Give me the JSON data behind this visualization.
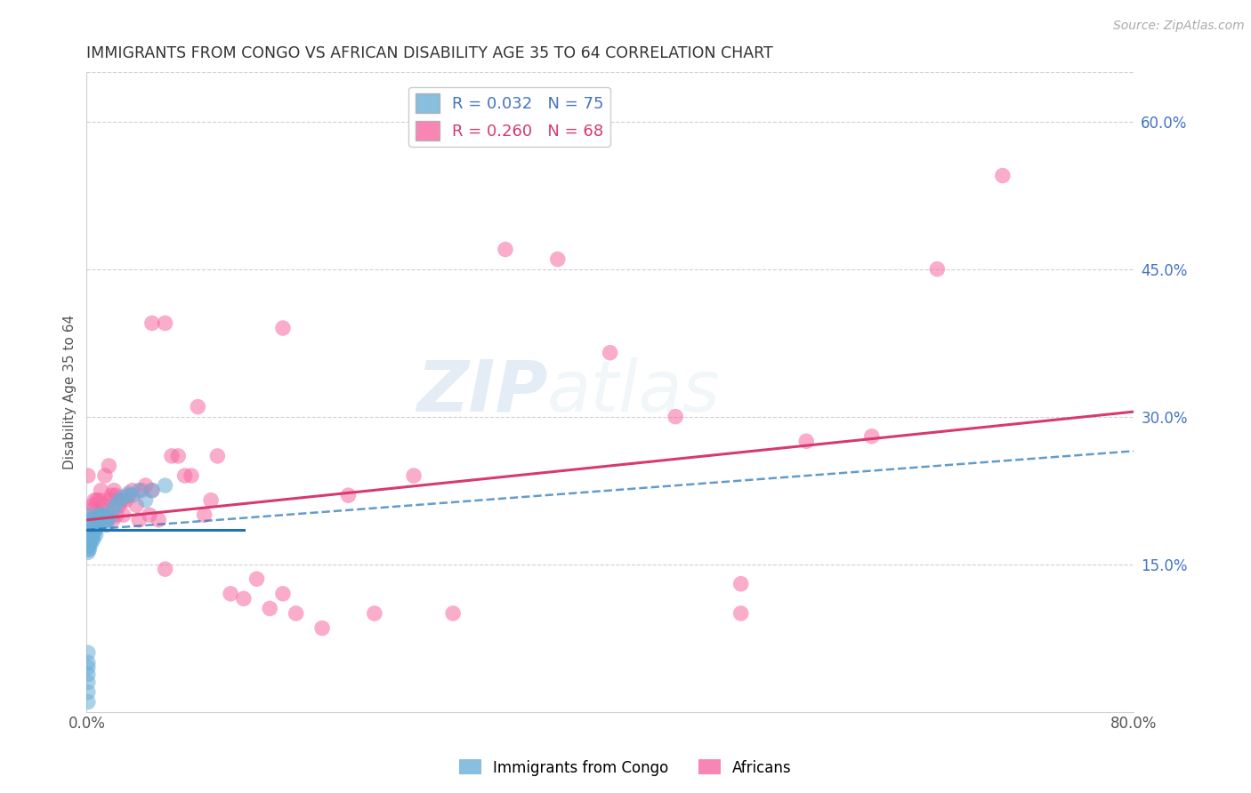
{
  "title": "IMMIGRANTS FROM CONGO VS AFRICAN DISABILITY AGE 35 TO 64 CORRELATION CHART",
  "source": "Source: ZipAtlas.com",
  "ylabel": "Disability Age 35 to 64",
  "x_min": 0.0,
  "x_max": 0.8,
  "y_min": 0.0,
  "y_max": 0.65,
  "right_yticks": [
    0.15,
    0.3,
    0.45,
    0.6
  ],
  "right_ytick_labels": [
    "15.0%",
    "30.0%",
    "45.0%",
    "60.0%"
  ],
  "watermark_zip": "ZIP",
  "watermark_atlas": "atlas",
  "legend_r1": "R = 0.032   N = 75",
  "legend_r2": "R = 0.260   N = 68",
  "legend_color1": "#6baed6",
  "legend_color2": "#f768a1",
  "legend_label1": "Immigrants from Congo",
  "legend_label2": "Africans",
  "congo_color": "#6baed6",
  "african_color": "#f768a1",
  "trendline_congo_color": "#2171b5",
  "trendline_african_color": "#d63a6e",
  "background_color": "#ffffff",
  "grid_color": "#d0d0d0",
  "right_axis_color": "#4472c4",
  "congo_x": [
    0.001,
    0.001,
    0.001,
    0.001,
    0.001,
    0.001,
    0.001,
    0.001,
    0.001,
    0.001,
    0.001,
    0.001,
    0.001,
    0.001,
    0.001,
    0.001,
    0.001,
    0.001,
    0.001,
    0.001,
    0.002,
    0.002,
    0.002,
    0.002,
    0.002,
    0.002,
    0.003,
    0.003,
    0.003,
    0.003,
    0.003,
    0.003,
    0.003,
    0.003,
    0.003,
    0.004,
    0.004,
    0.004,
    0.004,
    0.004,
    0.005,
    0.005,
    0.005,
    0.005,
    0.005,
    0.006,
    0.006,
    0.006,
    0.007,
    0.007,
    0.007,
    0.007,
    0.008,
    0.008,
    0.009,
    0.009,
    0.01,
    0.01,
    0.011,
    0.012,
    0.013,
    0.014,
    0.015,
    0.016,
    0.018,
    0.02,
    0.022,
    0.025,
    0.028,
    0.032,
    0.035,
    0.04,
    0.045,
    0.05,
    0.06
  ],
  "congo_y": [
    0.195,
    0.19,
    0.188,
    0.185,
    0.183,
    0.18,
    0.178,
    0.175,
    0.172,
    0.17,
    0.168,
    0.165,
    0.162,
    0.06,
    0.05,
    0.045,
    0.038,
    0.03,
    0.02,
    0.01,
    0.192,
    0.185,
    0.18,
    0.175,
    0.17,
    0.165,
    0.2,
    0.195,
    0.192,
    0.188,
    0.185,
    0.182,
    0.178,
    0.175,
    0.17,
    0.195,
    0.19,
    0.185,
    0.18,
    0.175,
    0.195,
    0.19,
    0.185,
    0.18,
    0.175,
    0.195,
    0.19,
    0.185,
    0.195,
    0.19,
    0.185,
    0.18,
    0.195,
    0.19,
    0.195,
    0.19,
    0.2,
    0.195,
    0.198,
    0.2,
    0.2,
    0.195,
    0.19,
    0.195,
    0.198,
    0.205,
    0.21,
    0.215,
    0.218,
    0.222,
    0.22,
    0.225,
    0.215,
    0.225,
    0.23
  ],
  "african_x": [
    0.001,
    0.003,
    0.004,
    0.005,
    0.006,
    0.007,
    0.008,
    0.009,
    0.01,
    0.011,
    0.012,
    0.013,
    0.014,
    0.015,
    0.016,
    0.017,
    0.018,
    0.019,
    0.02,
    0.021,
    0.022,
    0.023,
    0.025,
    0.027,
    0.028,
    0.03,
    0.032,
    0.035,
    0.038,
    0.04,
    0.042,
    0.045,
    0.048,
    0.05,
    0.055,
    0.06,
    0.065,
    0.07,
    0.075,
    0.08,
    0.085,
    0.09,
    0.095,
    0.1,
    0.11,
    0.12,
    0.13,
    0.14,
    0.15,
    0.16,
    0.18,
    0.2,
    0.22,
    0.25,
    0.28,
    0.32,
    0.36,
    0.4,
    0.45,
    0.5,
    0.55,
    0.6,
    0.65,
    0.7,
    0.05,
    0.06,
    0.15,
    0.5
  ],
  "african_y": [
    0.24,
    0.19,
    0.205,
    0.21,
    0.215,
    0.195,
    0.215,
    0.2,
    0.215,
    0.225,
    0.2,
    0.21,
    0.24,
    0.195,
    0.205,
    0.25,
    0.215,
    0.22,
    0.195,
    0.225,
    0.22,
    0.2,
    0.21,
    0.215,
    0.2,
    0.215,
    0.22,
    0.225,
    0.21,
    0.195,
    0.225,
    0.23,
    0.2,
    0.225,
    0.195,
    0.145,
    0.26,
    0.26,
    0.24,
    0.24,
    0.31,
    0.2,
    0.215,
    0.26,
    0.12,
    0.115,
    0.135,
    0.105,
    0.12,
    0.1,
    0.085,
    0.22,
    0.1,
    0.24,
    0.1,
    0.47,
    0.46,
    0.365,
    0.3,
    0.13,
    0.275,
    0.28,
    0.45,
    0.545,
    0.395,
    0.395,
    0.39,
    0.1
  ],
  "trendline_african_x0": 0.0,
  "trendline_african_x1": 0.8,
  "trendline_african_y0": 0.195,
  "trendline_african_y1": 0.305,
  "trendline_congo_x0": 0.0,
  "trendline_congo_x1": 0.12,
  "trendline_congo_y0": 0.185,
  "trendline_congo_y1": 0.185,
  "trendline_congo_dashed_x0": 0.0,
  "trendline_congo_dashed_x1": 0.8,
  "trendline_congo_dashed_y0": 0.185,
  "trendline_congo_dashed_y1": 0.265
}
